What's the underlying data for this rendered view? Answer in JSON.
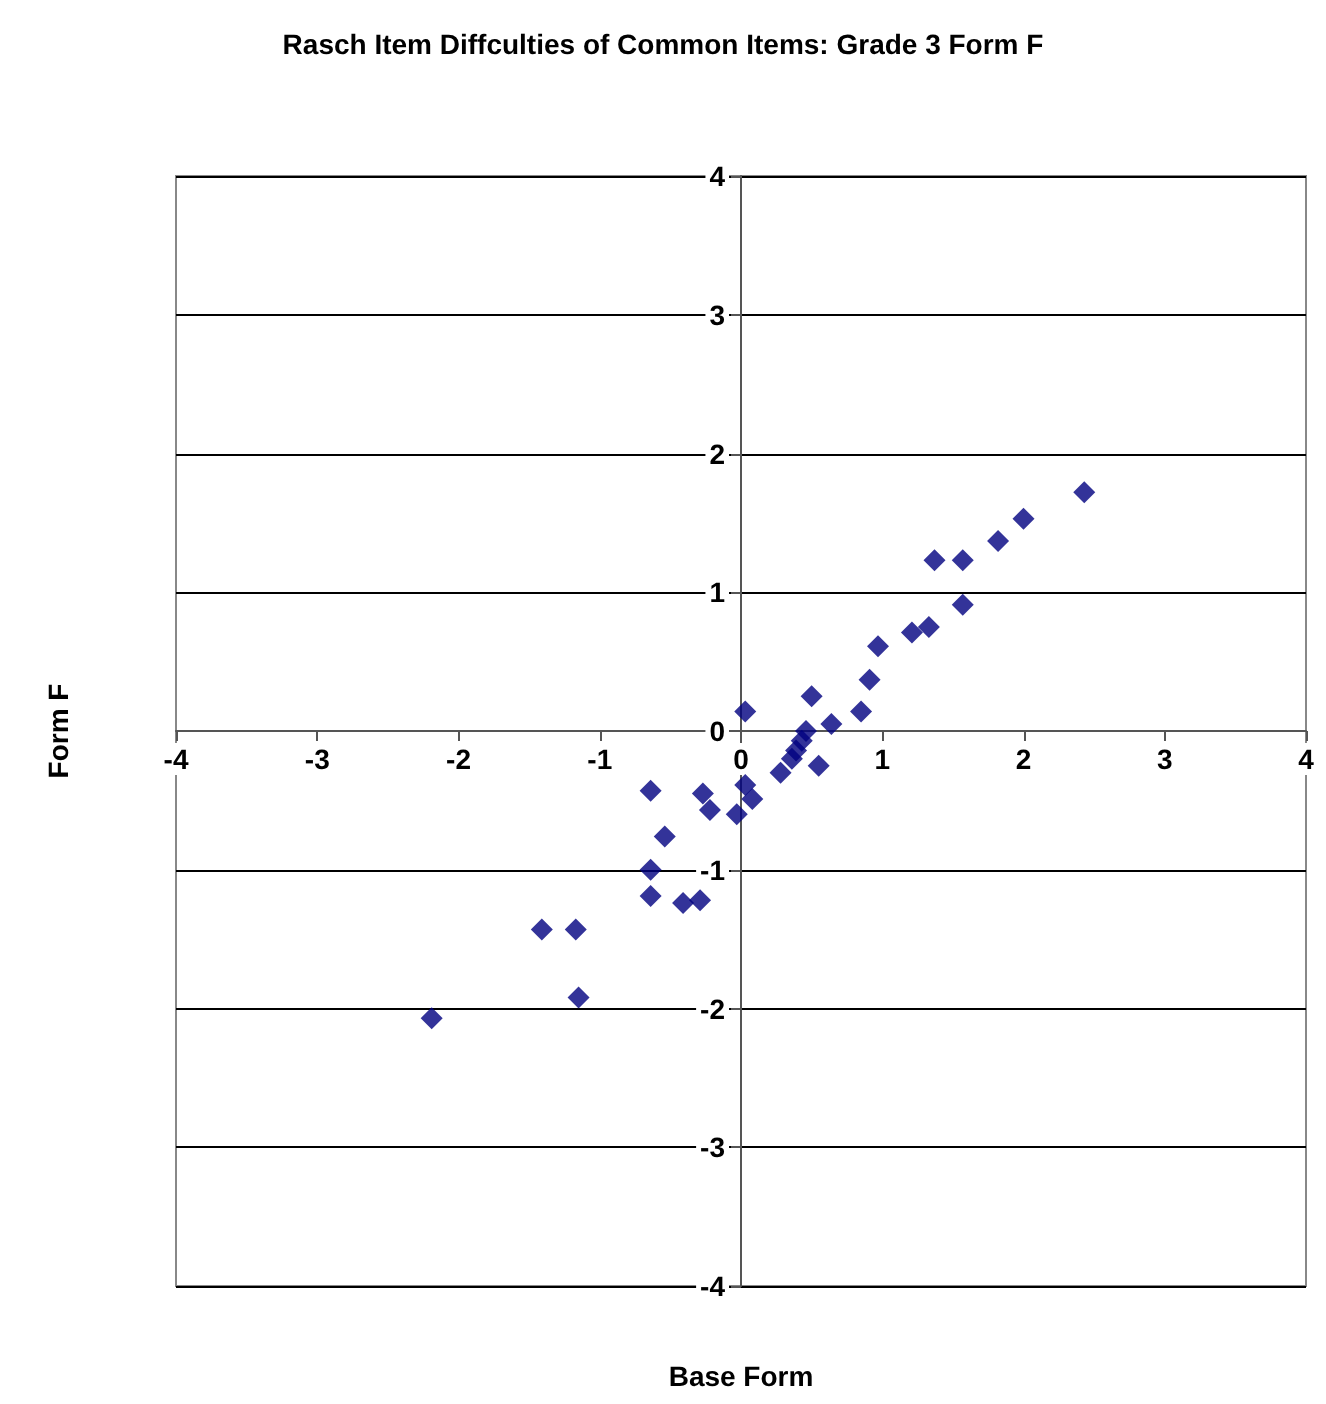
{
  "chart_data": {
    "type": "scatter",
    "title": "Rasch Item Diffculties of Common Items: Grade 3 Form F",
    "xlabel": "Base Form",
    "ylabel": "Form F",
    "x": [
      2.43,
      2.0,
      1.82,
      1.37,
      1.57,
      1.57,
      1.21,
      1.33,
      0.97,
      0.91,
      0.85,
      0.5,
      0.64,
      0.46,
      0.43,
      0.39,
      0.36,
      0.55,
      0.28,
      0.03,
      0.03,
      0.08,
      -0.03,
      -0.27,
      -0.22,
      -0.64,
      -0.54,
      -0.64,
      -0.64,
      -0.41,
      -0.29,
      -1.41,
      -1.17,
      -1.15,
      -2.19
    ],
    "values": [
      1.72,
      1.53,
      1.37,
      1.23,
      1.23,
      0.91,
      0.71,
      0.75,
      0.61,
      0.37,
      0.14,
      0.25,
      0.05,
      0.0,
      -0.07,
      -0.14,
      -0.2,
      -0.25,
      -0.3,
      0.14,
      -0.39,
      -0.49,
      -0.6,
      -0.45,
      -0.57,
      -0.43,
      -0.76,
      -1.0,
      -1.19,
      -1.24,
      -1.22,
      -1.43,
      -1.43,
      -1.92,
      -2.07
    ],
    "color": "#000080",
    "marker": "diamond",
    "xlim": [
      -4,
      4
    ],
    "ylim": [
      -4,
      4
    ],
    "xticks": [
      -4,
      -3,
      -2,
      -1,
      0,
      1,
      2,
      3,
      4
    ],
    "yticks": [
      -4,
      -3,
      -2,
      -1,
      0,
      1,
      2,
      3,
      4
    ],
    "grid": "y"
  }
}
